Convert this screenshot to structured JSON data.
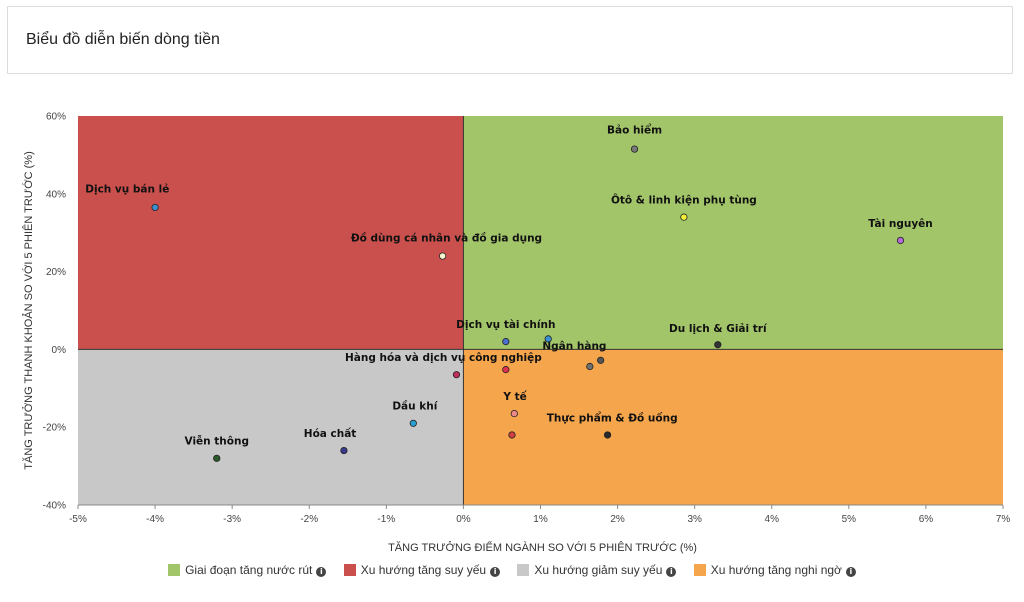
{
  "header": {
    "title": "Biểu đồ diễn biến dòng tiền"
  },
  "chart_data": {
    "type": "scatter",
    "xlabel": "TĂNG TRƯỞNG ĐIỂM NGÀNH SO VỚI 5 PHIÊN TRƯỚC (%)",
    "ylabel": "TĂNG TRƯỞNG THANH KHOẢN SO VỚI 5 PHIÊN TRƯỚC (%)",
    "xlim": [
      -5,
      7
    ],
    "ylim": [
      -40,
      60
    ],
    "xticks": [
      "-5%",
      "-4%",
      "-3%",
      "-2%",
      "-1%",
      "0%",
      "1%",
      "2%",
      "3%",
      "4%",
      "5%",
      "6%",
      "7%"
    ],
    "yticks": [
      "-40%",
      "-20%",
      "0%",
      "20%",
      "40%",
      "60%"
    ],
    "grid": false,
    "quadrants": [
      {
        "name": "Giai đoạn tăng nước rút",
        "color": "#a3c56a",
        "region": "x>0,y>0"
      },
      {
        "name": "Xu hướng tăng suy yếu",
        "color": "#c9504c",
        "region": "x<0,y>0"
      },
      {
        "name": "Xu hướng giảm suy yếu",
        "color": "#c8c8c8",
        "region": "x<0,y<0"
      },
      {
        "name": "Xu hướng tăng nghi ngờ",
        "color": "#f5a54c",
        "region": "x>0,y<0"
      }
    ],
    "points": [
      {
        "label": "Bảo hiểm",
        "x": 2.22,
        "y": 51.5,
        "color": "#7a7a7a"
      },
      {
        "label": "Ôtô & linh kiện phụ tùng",
        "x": 2.86,
        "y": 34,
        "color": "#f2ee3a"
      },
      {
        "label": "Tài nguyên",
        "x": 5.67,
        "y": 28,
        "color": "#b36ad6"
      },
      {
        "label": "Dịch vụ bán lẻ",
        "x": -4.0,
        "y": 36.5,
        "color": "#3a8fd0"
      },
      {
        "label": "Đồ dùng cá nhân và đồ gia dụng",
        "x": -0.27,
        "y": 24,
        "color": "#f5f5d0"
      },
      {
        "label": "Dịch vụ tài chính",
        "x": 0.55,
        "y": 2,
        "color": "#4a6fd0"
      },
      {
        "label": "Dịch vụ tài chính",
        "x": 1.1,
        "y": 2.7,
        "color": "#3a8fd0"
      },
      {
        "label": "Du lịch & Giải trí",
        "x": 3.3,
        "y": 1.2,
        "color": "#333333"
      },
      {
        "label": "Ngân hàng",
        "x": 1.78,
        "y": -2.8,
        "color": "#555555"
      },
      {
        "label": "Ngân hàng",
        "x": 1.64,
        "y": -4.4,
        "color": "#707070"
      },
      {
        "label": "Hàng hóa và dịch vụ công nghiệp",
        "x": -0.09,
        "y": -6.5,
        "color": "#c0305a"
      },
      {
        "label": "Hàng hóa và dịch vụ công nghiệp",
        "x": 0.55,
        "y": -5.2,
        "color": "#e03050"
      },
      {
        "label": "Y tế",
        "x": 0.66,
        "y": -16.5,
        "color": "#f08a8a"
      },
      {
        "label": "Y tế",
        "x": 0.63,
        "y": -22,
        "color": "#d04040"
      },
      {
        "label": "Thực phẩm & Đồ uống",
        "x": 1.87,
        "y": -22,
        "color": "#2a2a2a"
      },
      {
        "label": "Dầu khí",
        "x": -0.65,
        "y": -19,
        "color": "#2a9fd0"
      },
      {
        "label": "Hóa chất",
        "x": -1.55,
        "y": -26,
        "color": "#3a3a8a"
      },
      {
        "label": "Viễn thông",
        "x": -3.2,
        "y": -28,
        "color": "#2a5a2a"
      }
    ],
    "labels": [
      {
        "text": "Bảo hiểm",
        "x": 2.22,
        "y": 55.5,
        "anchor": "middle"
      },
      {
        "text": "Ôtô & linh kiện phụ tùng",
        "x": 2.86,
        "y": 37.5,
        "anchor": "middle"
      },
      {
        "text": "Tài nguyên",
        "x": 5.67,
        "y": 31.5,
        "anchor": "middle"
      },
      {
        "text": "Dịch vụ bán lẻ",
        "x": -4.36,
        "y": 40.3,
        "anchor": "middle"
      },
      {
        "text": "Đồ dùng cá nhân và đồ gia dụng",
        "x": -0.22,
        "y": 27.7,
        "anchor": "middle"
      },
      {
        "text": "Dịch vụ tài chính",
        "x": 0.55,
        "y": 5.5,
        "anchor": "middle"
      },
      {
        "text": "Du lịch & Giải trí",
        "x": 3.3,
        "y": 4.5,
        "anchor": "middle"
      },
      {
        "text": "Ngân hàng",
        "x": 1.44,
        "y": 0,
        "anchor": "middle"
      },
      {
        "text": "Hàng hóa và dịch vụ công nghiệp",
        "x": -0.26,
        "y": -3,
        "anchor": "middle"
      },
      {
        "text": "Y tế",
        "x": 0.67,
        "y": -13,
        "anchor": "middle"
      },
      {
        "text": "Thực phẩm & Đồ uống",
        "x": 1.93,
        "y": -18.5,
        "anchor": "middle"
      },
      {
        "text": "Dầu khí",
        "x": -0.63,
        "y": -15.5,
        "anchor": "middle"
      },
      {
        "text": "Hóa chất",
        "x": -1.73,
        "y": -22.5,
        "anchor": "middle"
      },
      {
        "text": "Viễn thông",
        "x": -3.2,
        "y": -24.5,
        "anchor": "middle"
      }
    ]
  },
  "legend": [
    {
      "label": "Giai đoạn tăng nước rút",
      "color": "#a3c56a"
    },
    {
      "label": "Xu hướng tăng suy yếu",
      "color": "#c9504c"
    },
    {
      "label": "Xu hướng giảm suy yếu",
      "color": "#c8c8c8"
    },
    {
      "label": "Xu hướng tăng nghi ngờ",
      "color": "#f5a54c"
    }
  ]
}
